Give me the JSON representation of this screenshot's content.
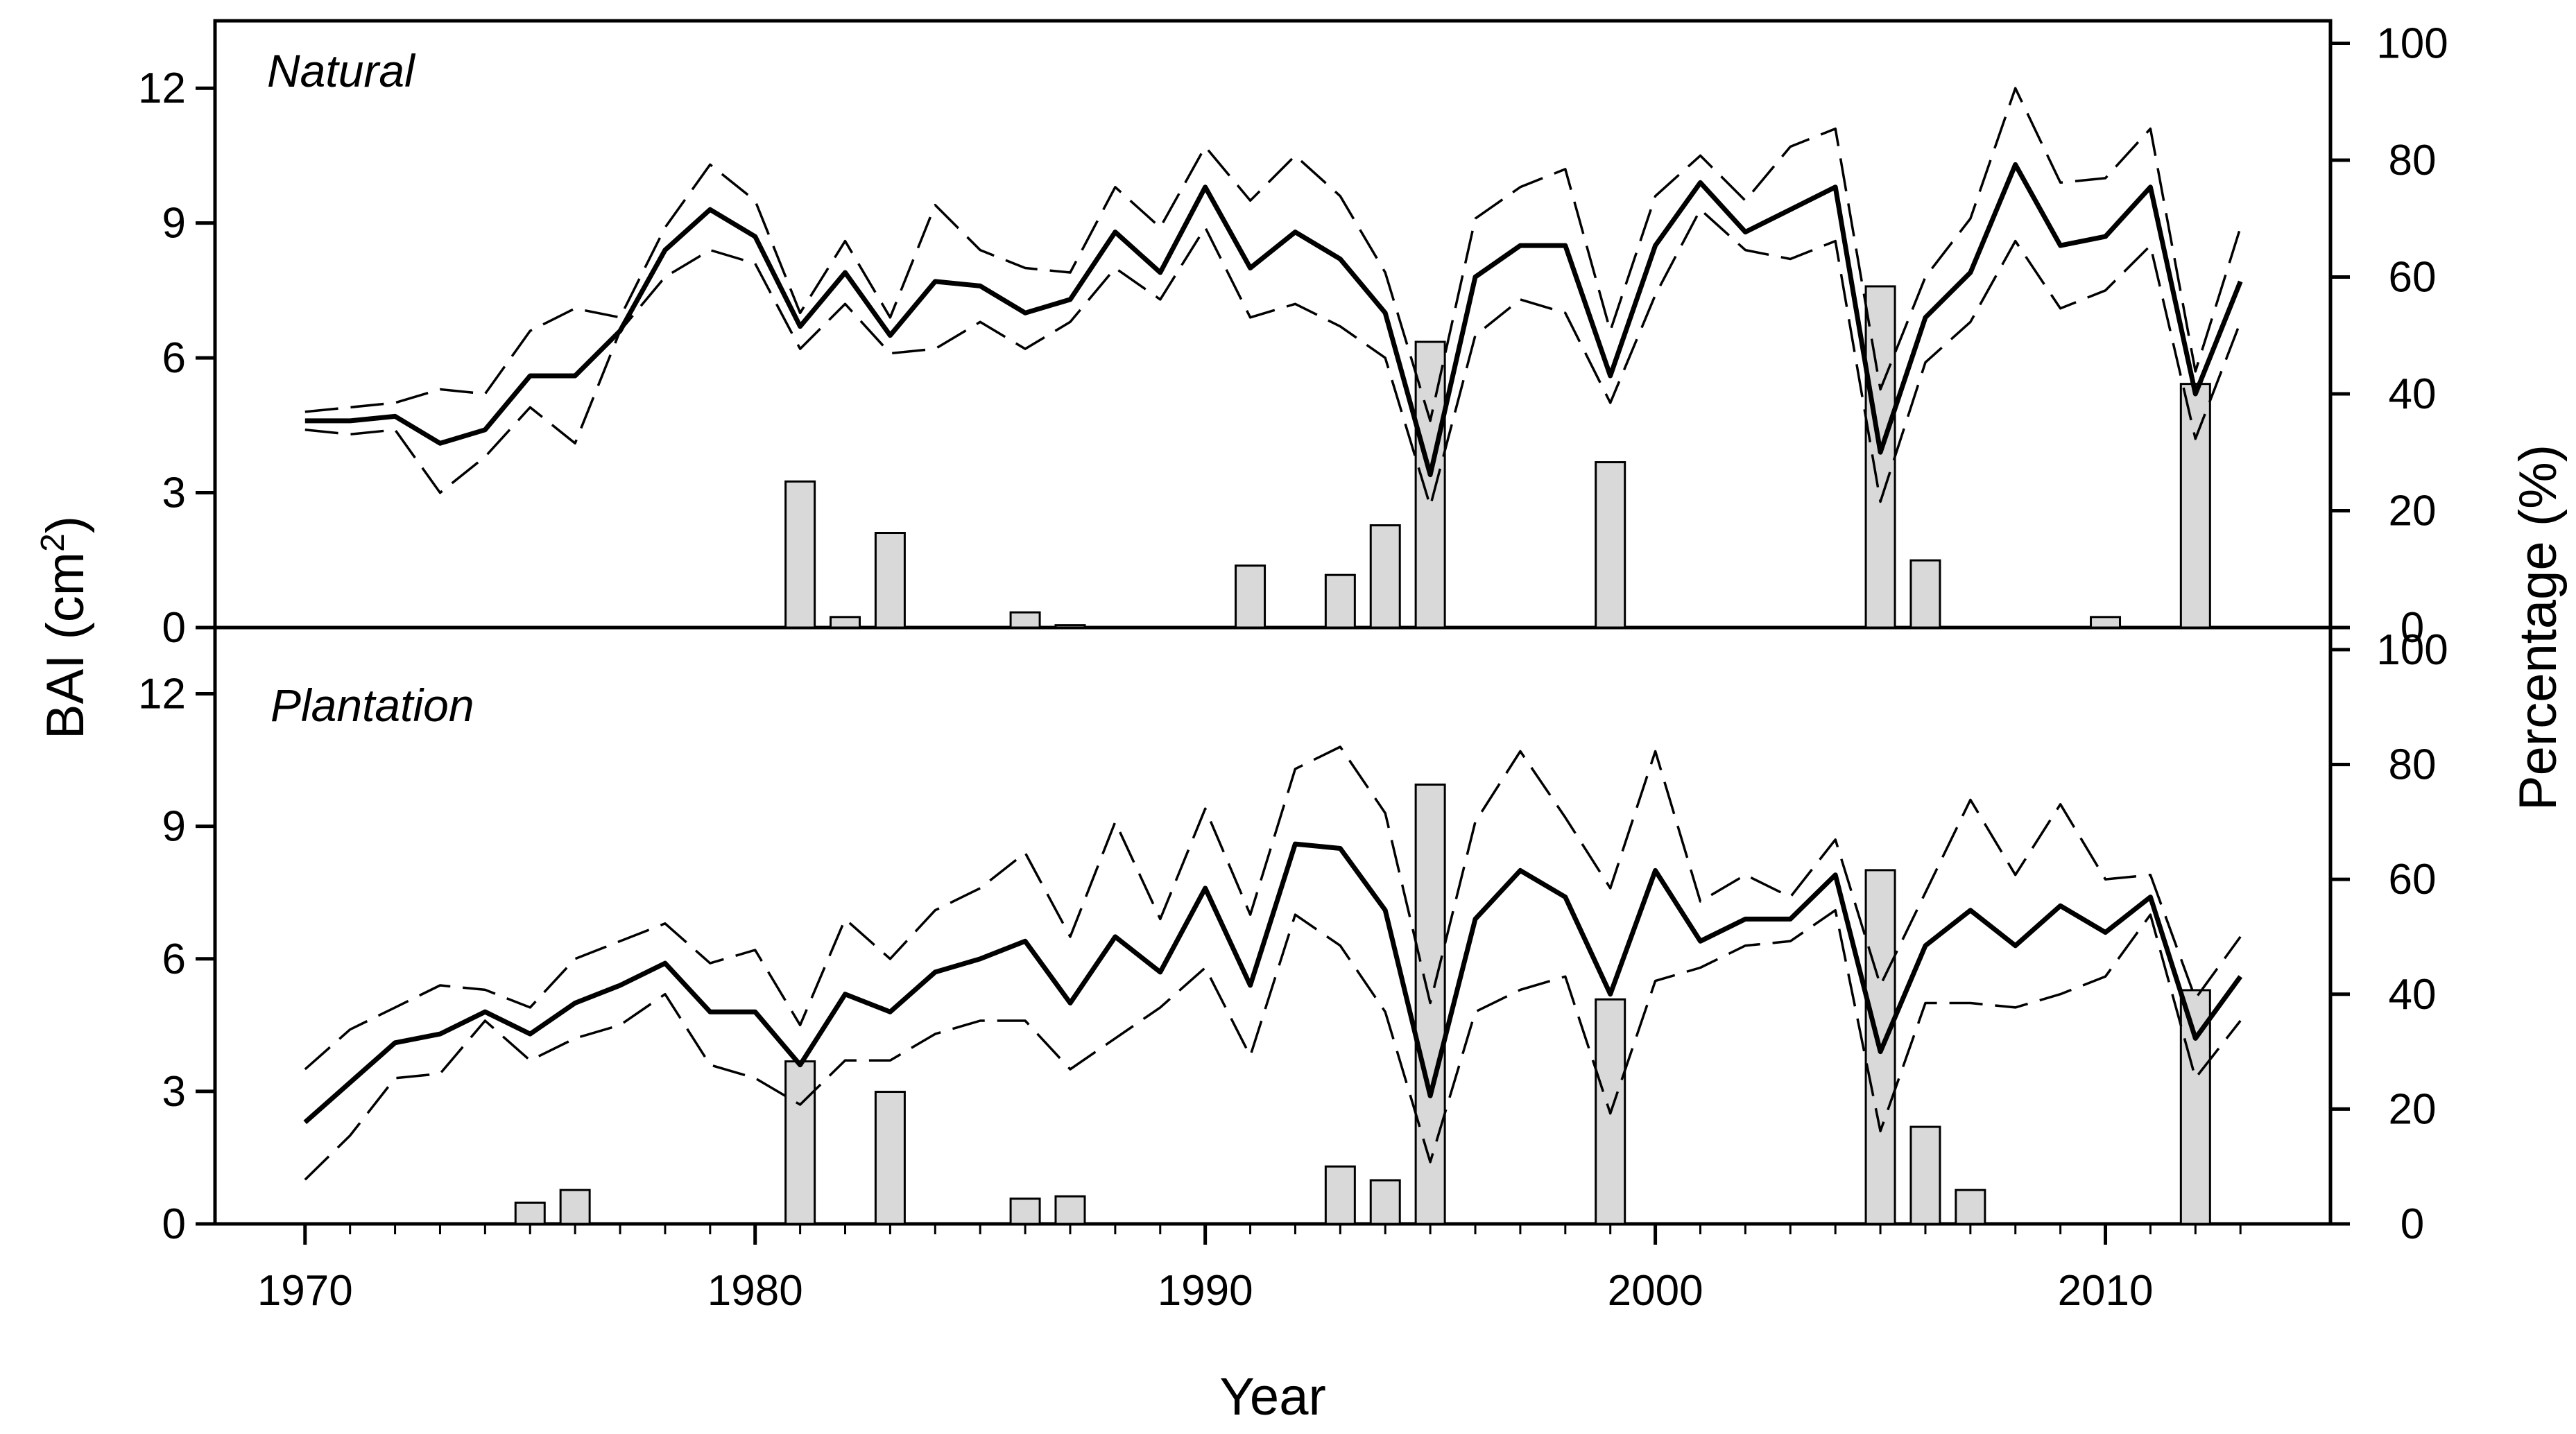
{
  "chart_data": {
    "type": "line+bar",
    "xlabel": "Year",
    "ylabel_left": [
      "BAI (cm",
      "2",
      ")"
    ],
    "ylabel_right": "Percentage (%)",
    "xlim": [
      1968,
      2015
    ],
    "xticks": [
      1970,
      1980,
      1990,
      2000,
      2010
    ],
    "left_ylim": [
      0,
      13.5
    ],
    "left_yticks": [
      0,
      3,
      6,
      9,
      12
    ],
    "right_ylim": [
      0,
      103.85
    ],
    "right_yticks": [
      0,
      20,
      40,
      60,
      80,
      100
    ],
    "panels": [
      {
        "title": "Natural",
        "years": [
          1970,
          1971,
          1972,
          1973,
          1974,
          1975,
          1976,
          1977,
          1978,
          1979,
          1980,
          1981,
          1982,
          1983,
          1984,
          1985,
          1986,
          1987,
          1988,
          1989,
          1990,
          1991,
          1992,
          1993,
          1994,
          1995,
          1996,
          1997,
          1998,
          1999,
          2000,
          2001,
          2002,
          2003,
          2004,
          2005,
          2006,
          2007,
          2008,
          2009,
          2010,
          2011,
          2012,
          2013
        ],
        "series": [
          {
            "role": "mean",
            "values": [
              4.6,
              4.6,
              4.7,
              4.1,
              4.4,
              5.6,
              5.6,
              6.6,
              8.4,
              9.3,
              8.7,
              6.7,
              7.9,
              6.5,
              7.7,
              7.6,
              7.0,
              7.3,
              8.8,
              7.9,
              9.8,
              8.0,
              8.8,
              8.2,
              7.0,
              3.4,
              7.8,
              8.5,
              8.5,
              5.6,
              8.5,
              9.9,
              8.8,
              9.3,
              9.8,
              3.9,
              6.9,
              7.9,
              10.3,
              8.5,
              8.7,
              9.8,
              5.2,
              7.7
            ]
          },
          {
            "role": "upper",
            "values": [
              4.8,
              4.9,
              5.0,
              5.3,
              5.2,
              6.6,
              7.1,
              6.9,
              8.9,
              10.3,
              9.5,
              7.0,
              8.6,
              6.9,
              9.4,
              8.4,
              8.0,
              7.9,
              9.8,
              8.9,
              10.7,
              9.5,
              10.5,
              9.6,
              7.9,
              4.6,
              9.1,
              9.8,
              10.2,
              6.6,
              9.6,
              10.5,
              9.5,
              10.7,
              11.1,
              5.3,
              7.8,
              9.1,
              12.0,
              9.9,
              10.0,
              11.1,
              5.7,
              8.9
            ]
          },
          {
            "role": "lower",
            "values": [
              4.4,
              4.3,
              4.4,
              3.0,
              3.8,
              4.9,
              4.1,
              6.6,
              7.8,
              8.4,
              8.1,
              6.2,
              7.2,
              6.1,
              6.2,
              6.8,
              6.2,
              6.8,
              8.0,
              7.3,
              8.9,
              6.9,
              7.2,
              6.7,
              6.0,
              2.7,
              6.5,
              7.3,
              7.0,
              5.0,
              7.4,
              9.3,
              8.4,
              8.2,
              8.6,
              2.8,
              5.9,
              6.8,
              8.6,
              7.1,
              7.5,
              8.5,
              4.2,
              6.8
            ]
          }
        ],
        "bars": [
          {
            "year": 1981,
            "percent": 25.0
          },
          {
            "year": 1982,
            "percent": 1.8
          },
          {
            "year": 1983,
            "percent": 16.2
          },
          {
            "year": 1986,
            "percent": 2.6
          },
          {
            "year": 1987,
            "percent": 0.4
          },
          {
            "year": 1991,
            "percent": 10.6
          },
          {
            "year": 1993,
            "percent": 9.0
          },
          {
            "year": 1994,
            "percent": 17.5
          },
          {
            "year": 1995,
            "percent": 48.9
          },
          {
            "year": 1999,
            "percent": 28.3
          },
          {
            "year": 2005,
            "percent": 58.4
          },
          {
            "year": 2006,
            "percent": 11.5
          },
          {
            "year": 2010,
            "percent": 1.8
          },
          {
            "year": 2012,
            "percent": 41.7
          }
        ]
      },
      {
        "title": "Plantation",
        "years": [
          1970,
          1971,
          1972,
          1973,
          1974,
          1975,
          1976,
          1977,
          1978,
          1979,
          1980,
          1981,
          1982,
          1983,
          1984,
          1985,
          1986,
          1987,
          1988,
          1989,
          1990,
          1991,
          1992,
          1993,
          1994,
          1995,
          1996,
          1997,
          1998,
          1999,
          2000,
          2001,
          2002,
          2003,
          2004,
          2005,
          2006,
          2007,
          2008,
          2009,
          2010,
          2011,
          2012,
          2013
        ],
        "series": [
          {
            "role": "mean",
            "values": [
              2.3,
              3.2,
              4.1,
              4.3,
              4.8,
              4.3,
              5.0,
              5.4,
              5.9,
              4.8,
              4.8,
              3.6,
              5.2,
              4.8,
              5.7,
              6.0,
              6.4,
              5.0,
              6.5,
              5.7,
              7.6,
              5.4,
              8.6,
              8.5,
              7.1,
              2.9,
              6.9,
              8.0,
              7.4,
              5.2,
              8.0,
              6.4,
              6.9,
              6.9,
              7.9,
              3.9,
              6.3,
              7.1,
              6.3,
              7.2,
              6.6,
              7.4,
              4.2,
              5.6
            ]
          },
          {
            "role": "upper",
            "values": [
              3.5,
              4.4,
              4.9,
              5.4,
              5.3,
              4.9,
              6.0,
              6.4,
              6.8,
              5.9,
              6.2,
              4.5,
              6.9,
              6.0,
              7.1,
              7.6,
              8.4,
              6.5,
              9.1,
              6.9,
              9.4,
              7.0,
              10.3,
              10.8,
              9.3,
              5.0,
              9.1,
              10.7,
              9.2,
              7.6,
              10.7,
              7.3,
              7.9,
              7.4,
              8.7,
              5.4,
              7.5,
              9.6,
              7.9,
              9.5,
              7.8,
              7.9,
              5.1,
              6.5
            ]
          },
          {
            "role": "lower",
            "values": [
              1.0,
              2.0,
              3.3,
              3.4,
              4.6,
              3.7,
              4.2,
              4.5,
              5.2,
              3.6,
              3.3,
              2.7,
              3.7,
              3.7,
              4.3,
              4.6,
              4.6,
              3.5,
              4.2,
              4.9,
              5.8,
              3.8,
              7.0,
              6.3,
              4.8,
              1.4,
              4.8,
              5.3,
              5.6,
              2.5,
              5.5,
              5.8,
              6.3,
              6.4,
              7.1,
              2.1,
              5.0,
              5.0,
              4.9,
              5.2,
              5.6,
              7.0,
              3.3,
              4.6
            ]
          }
        ],
        "bars": [
          {
            "year": 1975,
            "percent": 3.7
          },
          {
            "year": 1976,
            "percent": 5.9
          },
          {
            "year": 1981,
            "percent": 28.3
          },
          {
            "year": 1983,
            "percent": 23.0
          },
          {
            "year": 1986,
            "percent": 4.4
          },
          {
            "year": 1987,
            "percent": 4.8
          },
          {
            "year": 1993,
            "percent": 10.0
          },
          {
            "year": 1994,
            "percent": 7.6
          },
          {
            "year": 1995,
            "percent": 76.5
          },
          {
            "year": 1999,
            "percent": 39.1
          },
          {
            "year": 2005,
            "percent": 61.6
          },
          {
            "year": 2006,
            "percent": 16.9
          },
          {
            "year": 2007,
            "percent": 5.9
          },
          {
            "year": 2012,
            "percent": 40.7
          }
        ]
      }
    ]
  }
}
